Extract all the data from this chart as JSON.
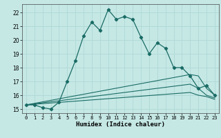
{
  "title": "",
  "xlabel": "Humidex (Indice chaleur)",
  "ylabel": "",
  "bg_color": "#c5e8e5",
  "grid_color": "#afd8d5",
  "line_color": "#1a6b65",
  "xlim": [
    -0.5,
    23.5
  ],
  "ylim": [
    14.7,
    22.6
  ],
  "yticks": [
    15,
    16,
    17,
    18,
    19,
    20,
    21,
    22
  ],
  "xticks": [
    0,
    1,
    2,
    3,
    4,
    5,
    6,
    7,
    8,
    9,
    10,
    11,
    12,
    13,
    14,
    15,
    16,
    17,
    18,
    19,
    20,
    21,
    22,
    23
  ],
  "curve1_x": [
    0,
    1,
    2,
    3,
    4,
    5,
    6,
    7,
    8,
    9,
    10,
    11,
    12,
    13,
    14,
    15,
    16,
    17,
    18,
    19,
    20,
    21,
    22,
    23
  ],
  "curve1_y": [
    15.3,
    15.3,
    15.1,
    15.0,
    15.5,
    17.0,
    18.5,
    20.3,
    21.3,
    20.7,
    22.2,
    21.5,
    21.7,
    21.5,
    20.2,
    19.0,
    19.8,
    19.4,
    18.0,
    18.0,
    17.4,
    16.5,
    16.7,
    16.0
  ],
  "curve2_x": [
    0,
    20,
    21,
    22,
    23
  ],
  "curve2_y": [
    15.3,
    17.5,
    17.4,
    16.5,
    16.0
  ],
  "curve3_x": [
    0,
    20,
    21,
    22,
    23
  ],
  "curve3_y": [
    15.3,
    16.8,
    16.5,
    16.0,
    15.8
  ],
  "curve4_x": [
    0,
    20,
    21,
    22,
    23
  ],
  "curve4_y": [
    15.3,
    16.2,
    16.0,
    15.9,
    15.7
  ],
  "figwidth": 3.2,
  "figheight": 2.0,
  "dpi": 100
}
